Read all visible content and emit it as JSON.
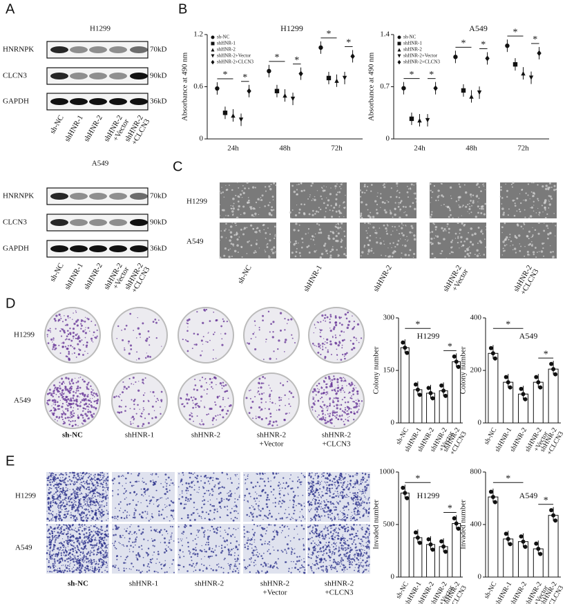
{
  "panel_labels": [
    "A",
    "B",
    "C",
    "D",
    "E"
  ],
  "blots": [
    {
      "cell": "H1299",
      "proteins": [
        "HNRNPK",
        "CLCN3",
        "GAPDH"
      ],
      "sizes": [
        "70kD",
        "90kD",
        "36kD"
      ],
      "lanes": [
        [
          "sh-NC"
        ],
        [
          "shHNR-1"
        ],
        [
          "shHNR-2"
        ],
        [
          "shHNR-2",
          "+Vector"
        ],
        [
          "shHNR-2",
          "+CLCN3"
        ]
      ]
    },
    {
      "cell": "A549",
      "proteins": [
        "HNRNPK",
        "CLCN3",
        "GAPDH"
      ],
      "sizes": [
        "70kD",
        "90kD",
        "36kD"
      ],
      "lanes": [
        [
          "sh-NC"
        ],
        [
          "shHNR-1"
        ],
        [
          "shHNR-2"
        ],
        [
          "shHNR-2",
          "+Vector"
        ],
        [
          "shHNR-2",
          "+CLCN3"
        ]
      ]
    }
  ],
  "images_c": {
    "rows": [
      "H1299",
      "A549"
    ],
    "columns": [
      [
        "sh-NC"
      ],
      [
        "shHNR-1"
      ],
      [
        "shHNR-2"
      ],
      [
        "shHNR-2",
        "+Vector"
      ],
      [
        "shHNR-2",
        "+CLCN3"
      ]
    ]
  },
  "images_d": {
    "rows": [
      "H1299",
      "A549"
    ],
    "columns": [
      [
        "sh-NC"
      ],
      [
        "shHNR-1"
      ],
      [
        "shHNR-2"
      ],
      [
        "shHNR-2",
        "+Vector"
      ],
      [
        "shHNR-2",
        "+CLCN3"
      ]
    ]
  },
  "images_e": {
    "rows": [
      "H1299",
      "A549"
    ],
    "columns": [
      [
        "sh-NC"
      ],
      [
        "shHNR-1"
      ],
      [
        "shHNR-2"
      ],
      [
        "shHNR-2",
        "+Vector"
      ],
      [
        "shHNR-2",
        "+CLCN3"
      ]
    ]
  },
  "chart_data": [
    {
      "type": "dot",
      "title": "H1299",
      "ylabel": "Absorbance at 490 nm",
      "categories": [
        "24h",
        "48h",
        "72h"
      ],
      "ylim": [
        0,
        1.2
      ],
      "yticks": [
        0,
        0.6,
        1.2
      ],
      "series": [
        {
          "name": "sh-NC",
          "marker": "circle",
          "values": [
            0.58,
            0.78,
            1.05
          ]
        },
        {
          "name": "shHNR-1",
          "marker": "square",
          "values": [
            0.3,
            0.55,
            0.7
          ]
        },
        {
          "name": "shHNR-2",
          "marker": "triangle",
          "values": [
            0.27,
            0.5,
            0.67
          ]
        },
        {
          "name": "shHNR-2+Vector",
          "marker": "triangle-down",
          "values": [
            0.22,
            0.46,
            0.7
          ]
        },
        {
          "name": "shHNR-2+CLCN3",
          "marker": "diamond",
          "values": [
            0.55,
            0.75,
            0.95
          ]
        }
      ],
      "annotations": [
        "*",
        "*",
        "*",
        "*",
        "*",
        "*"
      ]
    },
    {
      "type": "dot",
      "title": "A549",
      "ylabel": "Absorbance at 490 nm",
      "categories": [
        "24h",
        "48h",
        "72h"
      ],
      "ylim": [
        0,
        1.4
      ],
      "yticks": [
        0,
        0.7,
        1.4
      ],
      "series": [
        {
          "name": "sh-NC",
          "marker": "circle",
          "values": [
            0.68,
            1.1,
            1.25
          ]
        },
        {
          "name": "shHNR-1",
          "marker": "square",
          "values": [
            0.27,
            0.65,
            1.0
          ]
        },
        {
          "name": "shHNR-2",
          "marker": "triangle",
          "values": [
            0.25,
            0.57,
            0.88
          ]
        },
        {
          "name": "shHNR-2+Vector",
          "marker": "triangle-down",
          "values": [
            0.25,
            0.62,
            0.82
          ]
        },
        {
          "name": "shHNR-2+CLCN3",
          "marker": "diamond",
          "values": [
            0.68,
            1.08,
            1.15
          ]
        }
      ],
      "annotations": [
        "*",
        "*",
        "*",
        "*",
        "*",
        "*"
      ]
    },
    {
      "type": "bar",
      "title": "H1299",
      "ylabel": "Colony number",
      "categories": [
        [
          "sh-NC"
        ],
        [
          "shHNR-1"
        ],
        [
          "shHNR-2"
        ],
        [
          "shHNR-2",
          "+Vector"
        ],
        [
          "shHNR-2",
          "+CLCN3"
        ]
      ],
      "ylim": [
        0,
        300
      ],
      "yticks": [
        0,
        150,
        300
      ],
      "values": [
        215,
        95,
        85,
        92,
        175
      ],
      "annotations": [
        "*",
        "*"
      ]
    },
    {
      "type": "bar",
      "title": "A549",
      "ylabel": "Colony number",
      "categories": [
        [
          "sh-NC"
        ],
        [
          "shHNR-1"
        ],
        [
          "shHNR-2"
        ],
        [
          "shHNR-2",
          "+Vector"
        ],
        [
          "shHNR-2",
          "+CLCN3"
        ]
      ],
      "ylim": [
        0,
        400
      ],
      "yticks": [
        0,
        200,
        400
      ],
      "values": [
        265,
        155,
        110,
        155,
        205
      ],
      "annotations": [
        "*",
        "*"
      ]
    },
    {
      "type": "bar",
      "title": "H1299",
      "ylabel": "Invaded number",
      "categories": [
        [
          "sh-NC"
        ],
        [
          "shHNR-1"
        ],
        [
          "shHNR-2"
        ],
        [
          "shHNR-2",
          "+Vector"
        ],
        [
          "shHNR-2",
          "+CLCN3"
        ]
      ],
      "ylim": [
        0,
        1000
      ],
      "yticks": [
        0,
        500,
        1000
      ],
      "values": [
        800,
        375,
        310,
        290,
        510
      ],
      "annotations": [
        "*",
        "*"
      ]
    },
    {
      "type": "bar",
      "title": "A549",
      "ylabel": "Invaded number",
      "categories": [
        [
          "sh-NC"
        ],
        [
          "shHNR-1"
        ],
        [
          "shHNR-2"
        ],
        [
          "shHNR-2",
          "+Vector"
        ],
        [
          "shHNR-2",
          "+CLCN3"
        ]
      ],
      "ylim": [
        0,
        800
      ],
      "yticks": [
        0,
        400,
        800
      ],
      "values": [
        610,
        290,
        270,
        215,
        470
      ],
      "annotations": [
        "*",
        "*"
      ]
    }
  ]
}
